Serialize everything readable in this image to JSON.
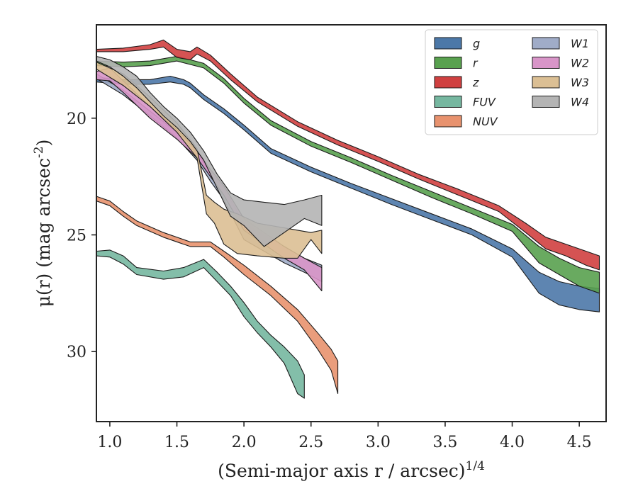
{
  "chart_data": {
    "type": "area",
    "xlabel": "(Semi-major axis r / arcsec)^{1/4}",
    "ylabel": "μ(r) (mag arcsec^{-2})",
    "xlim": [
      0.9,
      4.7
    ],
    "ylim": [
      33.0,
      16.0
    ],
    "y_inverted": true,
    "xticks": [
      "1.0",
      "1.5",
      "2.0",
      "2.5",
      "3.0",
      "3.5",
      "4.0",
      "4.5"
    ],
    "yticks": [
      "20",
      "25",
      "30"
    ],
    "legend_position": "top-right",
    "legend_columns": 2,
    "series": [
      {
        "name": "g",
        "color": "#4c78a8",
        "x": [
          0.9,
          1.1,
          1.3,
          1.45,
          1.55,
          1.6,
          1.7,
          1.85,
          2.0,
          2.2,
          2.5,
          2.8,
          3.1,
          3.4,
          3.7,
          4.0,
          4.2,
          4.35,
          4.5,
          4.65
        ],
        "y_bright": [
          18.25,
          18.35,
          18.35,
          18.2,
          18.35,
          18.5,
          19.0,
          19.6,
          20.3,
          21.3,
          22.1,
          22.8,
          23.45,
          24.1,
          24.75,
          25.6,
          26.6,
          27.0,
          27.2,
          27.3
        ],
        "y_faint": [
          18.45,
          18.55,
          18.55,
          18.45,
          18.55,
          18.7,
          19.2,
          19.8,
          20.5,
          21.5,
          22.3,
          23.0,
          23.7,
          24.35,
          25.0,
          25.95,
          27.5,
          28.0,
          28.2,
          28.3
        ]
      },
      {
        "name": "r",
        "color": "#59a14f",
        "x": [
          0.9,
          1.1,
          1.3,
          1.5,
          1.6,
          1.7,
          1.85,
          2.0,
          2.2,
          2.5,
          2.8,
          3.1,
          3.4,
          3.7,
          4.0,
          4.2,
          4.35,
          4.5,
          4.65
        ],
        "y_bright": [
          17.55,
          17.6,
          17.55,
          17.35,
          17.5,
          17.65,
          18.3,
          19.15,
          20.1,
          21.0,
          21.7,
          22.45,
          23.15,
          23.85,
          24.55,
          25.5,
          26.0,
          26.4,
          26.6
        ],
        "y_faint": [
          17.75,
          17.8,
          17.75,
          17.55,
          17.7,
          17.85,
          18.5,
          19.35,
          20.3,
          21.2,
          21.9,
          22.65,
          23.4,
          24.1,
          24.85,
          26.2,
          26.7,
          27.2,
          27.5
        ]
      },
      {
        "name": "z",
        "color": "#d04040",
        "x": [
          0.9,
          1.1,
          1.3,
          1.4,
          1.5,
          1.6,
          1.65,
          1.75,
          1.9,
          2.1,
          2.4,
          2.7,
          3.0,
          3.3,
          3.6,
          3.9,
          4.1,
          4.25,
          4.4,
          4.55,
          4.65
        ],
        "y_bright": [
          17.05,
          17.0,
          16.85,
          16.65,
          17.05,
          17.15,
          16.95,
          17.3,
          18.1,
          19.1,
          20.15,
          20.95,
          21.65,
          22.4,
          23.05,
          23.75,
          24.5,
          25.1,
          25.4,
          25.7,
          25.9
        ],
        "y_faint": [
          17.15,
          17.15,
          17.05,
          16.95,
          17.4,
          17.5,
          17.25,
          17.55,
          18.35,
          19.3,
          20.35,
          21.15,
          21.85,
          22.6,
          23.3,
          24.0,
          24.9,
          25.6,
          25.9,
          26.3,
          26.5
        ]
      },
      {
        "name": "FUV",
        "color": "#76b7a0",
        "x": [
          0.9,
          1.0,
          1.1,
          1.2,
          1.4,
          1.55,
          1.7,
          1.8,
          1.9,
          2.0,
          2.1,
          2.2,
          2.3,
          2.4,
          2.45
        ],
        "y_bright": [
          25.7,
          25.65,
          25.9,
          26.4,
          26.55,
          26.4,
          26.05,
          26.6,
          27.2,
          27.9,
          28.7,
          29.3,
          29.8,
          30.4,
          31.0
        ],
        "y_faint": [
          25.9,
          25.95,
          26.25,
          26.7,
          26.9,
          26.8,
          26.4,
          27.0,
          27.6,
          28.5,
          29.2,
          29.8,
          30.5,
          31.8,
          32.0
        ]
      },
      {
        "name": "NUV",
        "color": "#e8926e",
        "x": [
          0.9,
          1.0,
          1.1,
          1.2,
          1.4,
          1.6,
          1.75,
          1.85,
          2.0,
          2.2,
          2.4,
          2.55,
          2.65,
          2.7
        ],
        "y_bright": [
          23.35,
          23.55,
          24.0,
          24.4,
          24.9,
          25.3,
          25.3,
          25.7,
          26.3,
          27.2,
          28.2,
          29.2,
          29.9,
          30.4
        ],
        "y_faint": [
          23.55,
          23.75,
          24.2,
          24.6,
          25.1,
          25.5,
          25.5,
          25.95,
          26.7,
          27.6,
          28.7,
          29.9,
          30.8,
          31.8
        ]
      },
      {
        "name": "W1",
        "color": "#a0acc8",
        "x": [
          0.9,
          1.1,
          1.3,
          1.5,
          1.65,
          1.75,
          1.85,
          2.0,
          2.15,
          2.3,
          2.45,
          2.58
        ],
        "y_bright": [
          18.1,
          18.8,
          19.7,
          20.6,
          21.5,
          22.3,
          23.0,
          24.5,
          25.0,
          25.5,
          26.0,
          26.3
        ],
        "y_faint": [
          18.3,
          19.0,
          19.9,
          20.85,
          21.8,
          22.7,
          23.5,
          25.2,
          25.7,
          26.2,
          26.6,
          27.0
        ]
      },
      {
        "name": "W2",
        "color": "#d895c8",
        "x": [
          0.9,
          1.0,
          1.1,
          1.3,
          1.5,
          1.65,
          1.75,
          1.85,
          2.0,
          2.15,
          2.3,
          2.45,
          2.58
        ],
        "y_bright": [
          18.0,
          17.85,
          18.4,
          19.5,
          20.5,
          21.4,
          22.2,
          22.9,
          24.3,
          24.9,
          25.5,
          26.0,
          26.4
        ],
        "y_faint": [
          18.35,
          18.4,
          18.9,
          20.0,
          20.9,
          21.7,
          22.5,
          23.3,
          24.8,
          25.4,
          26.0,
          26.5,
          27.4
        ]
      },
      {
        "name": "W3",
        "color": "#dbbf94",
        "x": [
          0.9,
          1.1,
          1.3,
          1.5,
          1.65,
          1.72,
          1.78,
          1.85,
          1.95,
          2.1,
          2.3,
          2.4,
          2.5,
          2.58
        ],
        "y_bright": [
          17.6,
          18.1,
          19.1,
          20.2,
          21.3,
          23.3,
          23.6,
          23.9,
          24.1,
          24.5,
          24.7,
          24.8,
          24.9,
          24.8
        ],
        "y_faint": [
          17.9,
          18.6,
          19.5,
          20.6,
          21.7,
          24.1,
          24.5,
          25.4,
          25.8,
          25.9,
          26.0,
          26.0,
          25.2,
          25.8
        ]
      },
      {
        "name": "W4",
        "color": "#b4b4b4",
        "x": [
          0.9,
          1.0,
          1.1,
          1.2,
          1.3,
          1.4,
          1.5,
          1.6,
          1.7,
          1.8,
          1.9,
          2.0,
          2.15,
          2.3,
          2.45,
          2.58
        ],
        "y_bright": [
          17.35,
          17.5,
          17.8,
          18.2,
          18.9,
          19.5,
          20.0,
          20.6,
          21.4,
          22.4,
          23.2,
          23.5,
          23.6,
          23.7,
          23.5,
          23.3
        ],
        "y_faint": [
          17.55,
          17.8,
          18.2,
          18.7,
          19.3,
          19.9,
          20.4,
          21.0,
          21.8,
          23.0,
          24.2,
          24.6,
          25.5,
          24.9,
          24.3,
          24.6
        ]
      }
    ]
  }
}
